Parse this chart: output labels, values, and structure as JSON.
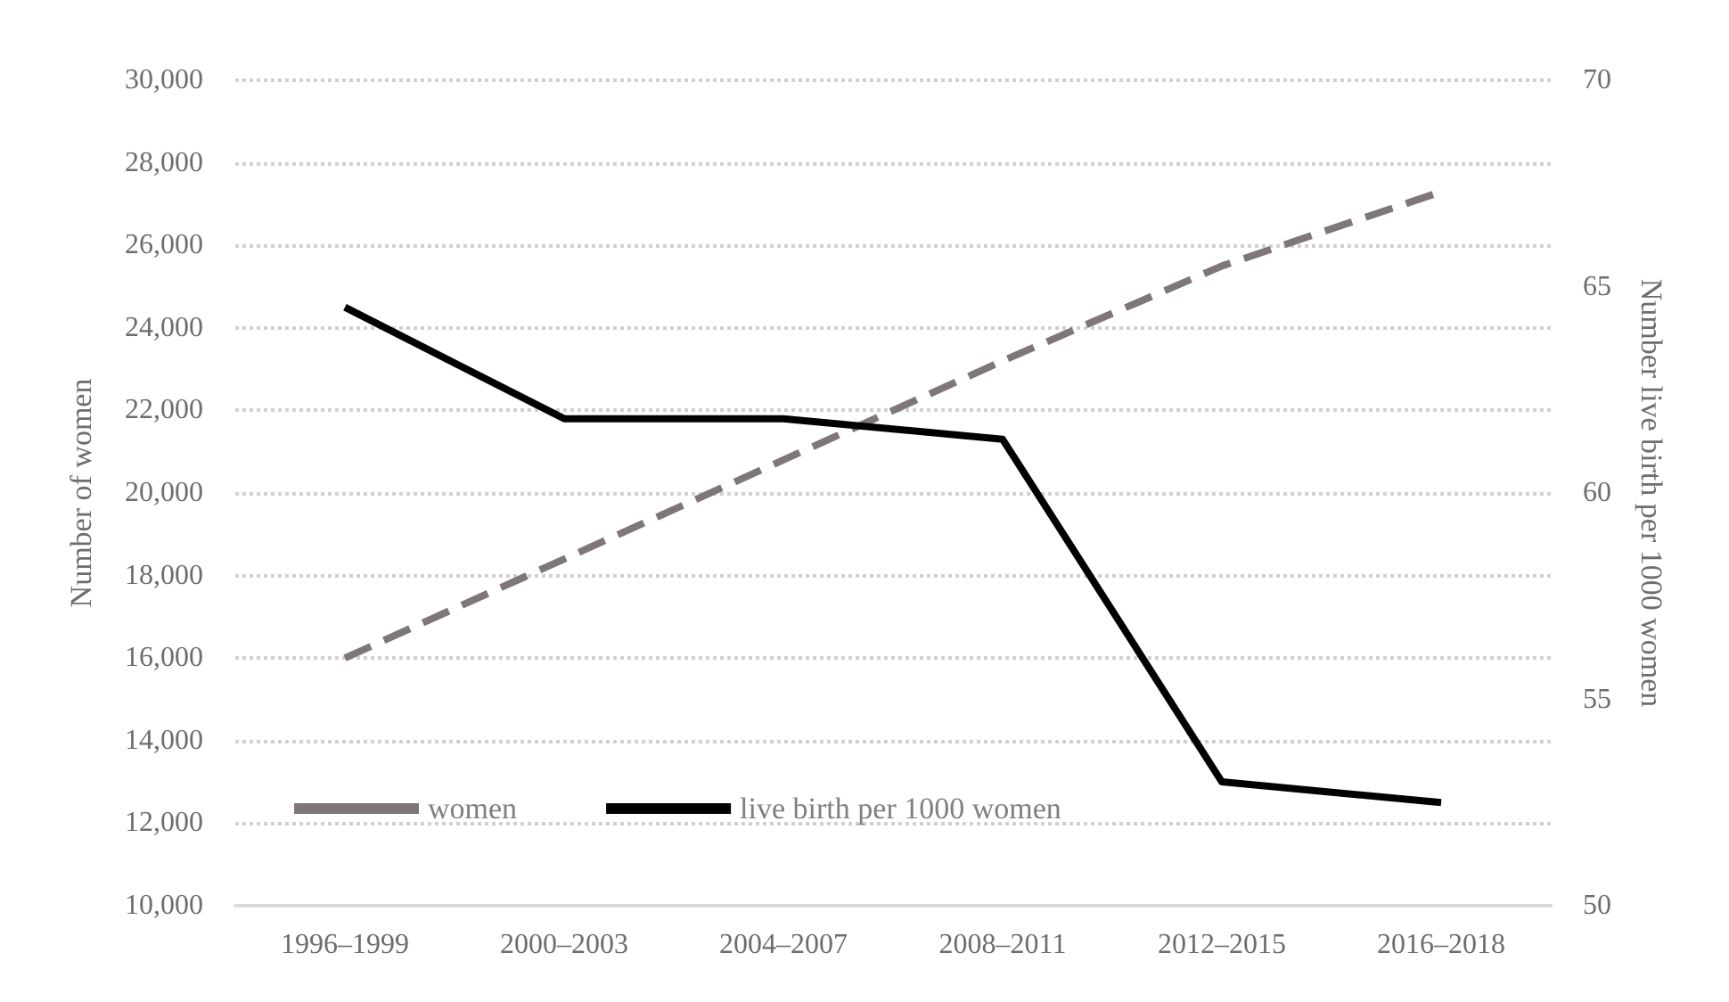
{
  "chart_data": {
    "type": "line",
    "ylabel": "Number of women",
    "y2label": "Number live birth per 1000 women",
    "categories": [
      "1996–1999",
      "2000–2003",
      "2004–2007",
      "2008–2011",
      "2012–2015",
      "2016–2018"
    ],
    "series": [
      {
        "name": "women",
        "color": "#7f7679",
        "line_style": "dashed",
        "values": [
          16000,
          18400,
          20800,
          23200,
          25500,
          27300
        ]
      },
      {
        "name": "live birth per 1000 women",
        "color": "#000000",
        "line_style": "solid",
        "axis": "y2",
        "values": [
          64.5,
          61.8,
          61.8,
          61.3,
          53.0,
          52.5
        ]
      }
    ],
    "ylim": [
      10000,
      30000
    ],
    "yticks": [
      {
        "value": 10000,
        "label": "10,000"
      },
      {
        "value": 12000,
        "label": "12,000"
      },
      {
        "value": 14000,
        "label": "14,000"
      },
      {
        "value": 16000,
        "label": "16,000"
      },
      {
        "value": 18000,
        "label": "18,000"
      },
      {
        "value": 20000,
        "label": "20,000"
      },
      {
        "value": 22000,
        "label": "22,000"
      },
      {
        "value": 24000,
        "label": "24,000"
      },
      {
        "value": 26000,
        "label": "26,000"
      },
      {
        "value": 28000,
        "label": "28,000"
      },
      {
        "value": 30000,
        "label": "30,000"
      }
    ],
    "y2lim": [
      50,
      70
    ],
    "y2ticks": [
      50,
      55,
      60,
      65,
      70
    ],
    "grid": "y",
    "legend": "bottom left",
    "marker": "none"
  }
}
